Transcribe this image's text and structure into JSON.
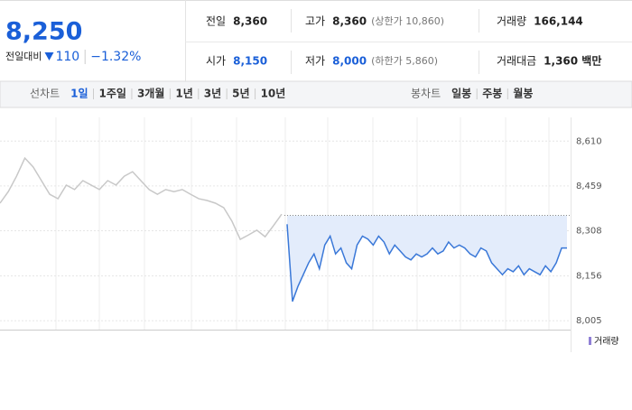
{
  "summary": {
    "price": "8,250",
    "change_label": "전일대비",
    "change": "110",
    "change_rate": "−1.32%"
  },
  "stats": [
    [
      {
        "label": "전일",
        "value": "8,360"
      },
      {
        "label": "고가",
        "value": "8,360",
        "note": "(상한가 10,860)"
      },
      {
        "label": "거래량",
        "value": "166,144"
      }
    ],
    [
      {
        "label": "시가",
        "value": "8,150",
        "highlight": true
      },
      {
        "label": "저가",
        "value": "8,000",
        "note": "(하한가 5,860)",
        "highlight": true
      },
      {
        "label": "거래대금",
        "value": "1,360 백만"
      }
    ]
  ],
  "tabs": {
    "line_label": "선차트",
    "periods": [
      "1일",
      "1주일",
      "3개월",
      "1년",
      "3년",
      "5년",
      "10년"
    ],
    "selected": 0,
    "candle_label": "봉차트",
    "candle_periods": [
      "일봉",
      "주봉",
      "월봉"
    ]
  },
  "chart_data": {
    "type": "line",
    "ylim": [
      7975,
      8690
    ],
    "yticks": [
      {
        "value": 8610,
        "label": "8,610"
      },
      {
        "value": 8459,
        "label": "8,459"
      },
      {
        "value": 8308,
        "label": "8,308"
      },
      {
        "value": 8156,
        "label": "8,156"
      },
      {
        "value": 8005,
        "label": "8,005"
      }
    ],
    "reference": 8360,
    "volume_label": "거래량",
    "series": [
      {
        "color": "#c8c8c8",
        "values": [
          8401,
          8440,
          8492,
          8553,
          8523,
          8477,
          8431,
          8416,
          8462,
          8447,
          8477,
          8462,
          8447,
          8477,
          8462,
          8492,
          8507,
          8477,
          8447,
          8431,
          8447,
          8440,
          8447,
          8431,
          8416,
          8410,
          8401,
          8386,
          8340,
          8279,
          8294,
          8310,
          8288,
          8325,
          8364
        ]
      },
      {
        "color": "#3a78d8",
        "fill": "#e3ecfb",
        "values": [
          8330,
          8070,
          8120,
          8160,
          8200,
          8230,
          8180,
          8260,
          8290,
          8230,
          8250,
          8200,
          8180,
          8260,
          8290,
          8280,
          8260,
          8290,
          8270,
          8230,
          8260,
          8240,
          8220,
          8210,
          8230,
          8220,
          8230,
          8250,
          8230,
          8240,
          8270,
          8250,
          8260,
          8250,
          8230,
          8220,
          8250,
          8240,
          8200,
          8180,
          8160,
          8180,
          8170,
          8190,
          8160,
          8180,
          8170,
          8160,
          8190,
          8170,
          8200,
          8250,
          8250
        ]
      }
    ]
  }
}
